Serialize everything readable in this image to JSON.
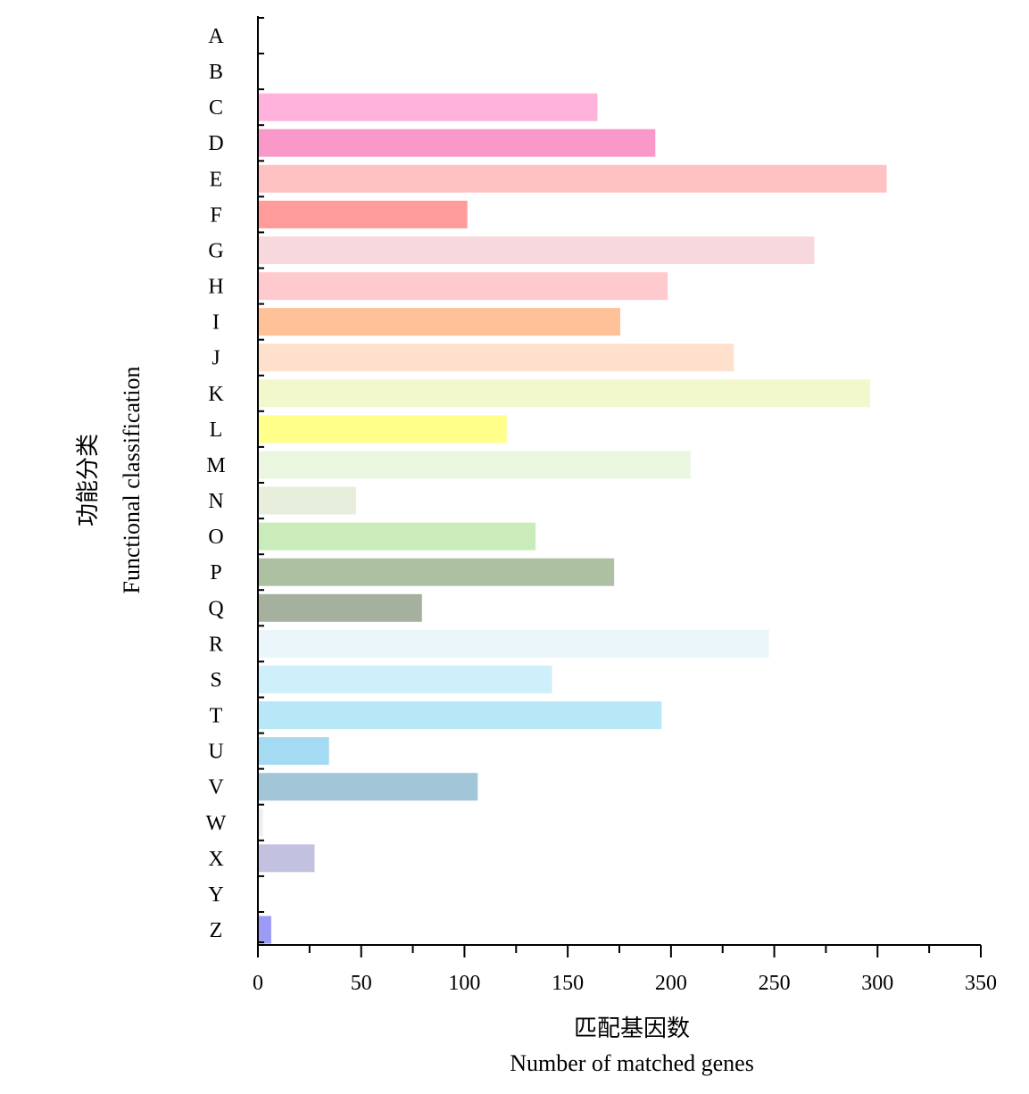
{
  "chart_data": {
    "type": "bar",
    "orientation": "horizontal",
    "categories": [
      "A",
      "B",
      "C",
      "D",
      "E",
      "F",
      "G",
      "H",
      "I",
      "J",
      "K",
      "L",
      "M",
      "N",
      "O",
      "P",
      "Q",
      "R",
      "S",
      "T",
      "U",
      "V",
      "W",
      "X",
      "Y",
      "Z"
    ],
    "values": [
      0,
      0,
      164,
      192,
      304,
      101,
      269,
      198,
      175,
      230,
      296,
      120,
      209,
      47,
      134,
      172,
      79,
      247,
      142,
      195,
      34,
      106,
      2,
      27,
      0,
      6
    ],
    "colors": [
      "#ffffff",
      "#ffffff",
      "#ffb3dc",
      "#f999ca",
      "#ffc2c2",
      "#ff9b9b",
      "#f7d9dd",
      "#ffcacd",
      "#ffc197",
      "#ffe0cd",
      "#f2f7cc",
      "#ffff8a",
      "#ebf6e0",
      "#e7eedb",
      "#caecbb",
      "#adc0a2",
      "#a5b19e",
      "#ebf6fa",
      "#cfeffa",
      "#b8e8f8",
      "#a5daf3",
      "#a2c5d7",
      "#eeeeee",
      "#c2c2e0",
      "#ffffff",
      "#9b9bf6"
    ],
    "xlim": [
      0,
      350
    ],
    "xticks": [
      0,
      50,
      100,
      150,
      200,
      250,
      300,
      350
    ],
    "xlabel_cn": "匹配基因数",
    "xlabel": "Number of matched genes",
    "ylabel_cn": "功能分类",
    "ylabel": "Functional classification"
  }
}
